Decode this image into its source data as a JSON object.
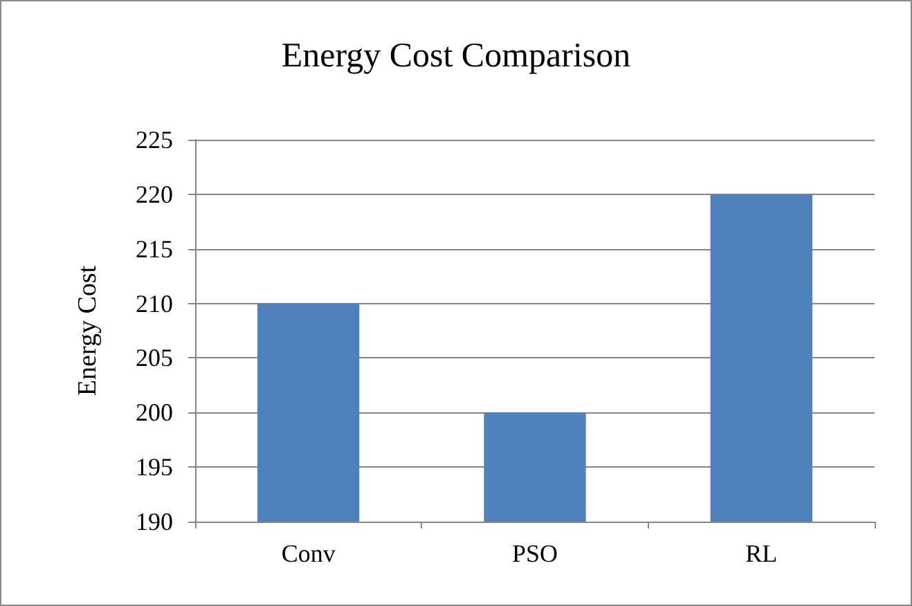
{
  "chart_data": {
    "type": "bar",
    "title": "Energy Cost Comparison",
    "ylabel": "Energy Cost",
    "categories": [
      "Conv",
      "PSO",
      "RL"
    ],
    "values": [
      210,
      200,
      220
    ],
    "color": "#4f81bd",
    "ylim": [
      190,
      225
    ],
    "yticks": [
      190,
      195,
      200,
      205,
      210,
      215,
      220,
      225
    ],
    "grid": "y"
  }
}
